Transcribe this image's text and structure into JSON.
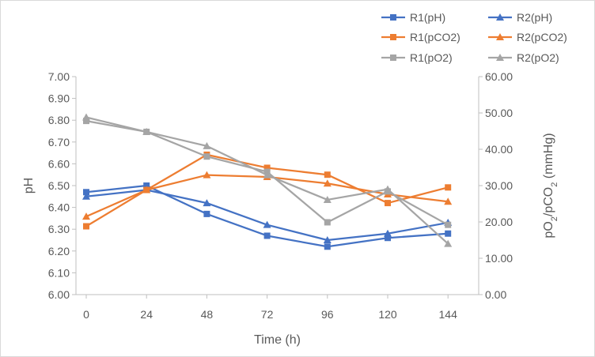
{
  "chart_data": {
    "type": "line",
    "x": [
      0,
      24,
      48,
      72,
      96,
      120,
      144
    ],
    "xlabel": "Time (h)",
    "ylabel": "pH",
    "ylabel2": "pO2/pCO2 (mmHg)",
    "ylim": [
      6.0,
      7.0
    ],
    "y2lim": [
      0.0,
      60.0
    ],
    "yticks": [
      "6.00",
      "6.10",
      "6.20",
      "6.30",
      "6.40",
      "6.50",
      "6.60",
      "6.70",
      "6.80",
      "6.90",
      "7.00"
    ],
    "y2ticks": [
      "0.00",
      "10.00",
      "20.00",
      "30.00",
      "40.00",
      "50.00",
      "60.00"
    ],
    "xticks": [
      "0",
      "24",
      "48",
      "72",
      "96",
      "120",
      "144"
    ],
    "legend_position": "top-right",
    "grid": false,
    "series": [
      {
        "name": "R1(pH)",
        "axis": "left",
        "marker": "square",
        "color": "#4472C4",
        "values": [
          6.47,
          6.5,
          6.37,
          6.27,
          6.22,
          6.26,
          6.28
        ]
      },
      {
        "name": "R2(pH)",
        "axis": "left",
        "marker": "triangle",
        "color": "#4472C4",
        "values": [
          6.45,
          6.48,
          6.42,
          6.32,
          6.25,
          6.28,
          6.33
        ]
      },
      {
        "name": "R1(pCO2)",
        "axis": "right",
        "marker": "square",
        "color": "#ED7D31",
        "values": [
          18.8,
          28.8,
          38.5,
          34.9,
          33.0,
          25.2,
          29.5
        ]
      },
      {
        "name": "R2(pCO2)",
        "axis": "right",
        "marker": "triangle",
        "color": "#ED7D31",
        "values": [
          21.5,
          28.8,
          32.9,
          32.4,
          30.6,
          27.6,
          25.6
        ]
      },
      {
        "name": "R1(pO2)",
        "axis": "right",
        "marker": "square",
        "color": "#A5A5A5",
        "values": [
          47.8,
          44.8,
          38.0,
          33.8,
          19.9,
          28.4,
          19.2
        ]
      },
      {
        "name": "R2(pO2)",
        "axis": "right",
        "marker": "triangle",
        "color": "#A5A5A5",
        "values": [
          48.8,
          44.8,
          40.9,
          32.9,
          26.1,
          29.0,
          14.0
        ]
      }
    ]
  }
}
